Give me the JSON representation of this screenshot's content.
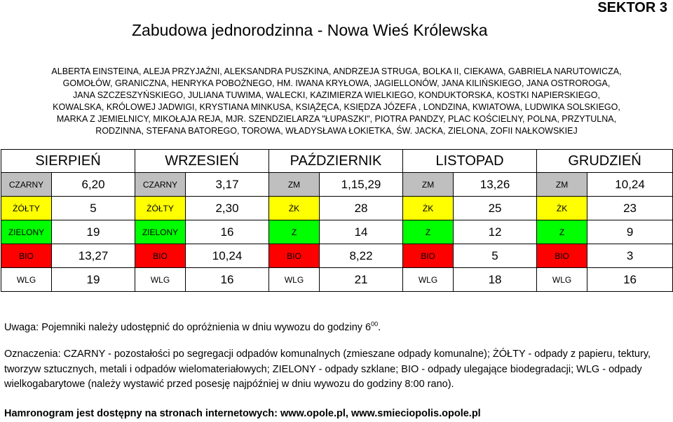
{
  "sector": "SEKTOR 3",
  "title": "Zabudowa jednorodzinna - Nowa Wieś Królewska",
  "streets": [
    "ALBERTA EINSTEINA, ALEJA PRZYJAŹNI, ALEKSANDRA PUSZKINA, ANDRZEJA STRUGA, BOLKA II, CIEKAWA, GABRIELA NARUTOWICZA,",
    "GOMOŁÓW, GRANICZNA, HENRYKA POBOŻNEGO, HM. IWANA KRYŁOWA, JAGIELLONÓW, JANA KILIŃSKIEGO, JANA OSTROROGA,",
    "JANA SZCZESZYŃSKIEGO, JULIANA TUWIMA, WALECKI, KAZIMIERZA WIELKIEGO, KONDUKTORSKA, KOSTKI NAPIERSKIEGO,",
    "KOWALSKA, KRÓLOWEJ JADWIGI, KRYSTIANA MINKUSA, KSIĄŻĘCA, KSIĘDZA JÓZEFA , LONDZINA, KWIATOWA, LUDWIKA SOLSKIEGO,",
    "MARKA Z JEMIELNICY, MIKOŁAJA REJA, MJR. SZENDZIELARZA \"ŁUPASZKI\", PIOTRA PANDZY, PLAC KOŚCIELNY, POLNA, PRZYTULNA,",
    "RODZINNA, STEFANA BATOREGO, TOROWA, WŁADYSŁAWA ŁOKIETKA, ŚW. JACKA, ZIELONA, ZOFII NAŁKOWSKIEJ"
  ],
  "months": [
    "SIERPIEŃ",
    "WRZESIEŃ",
    "PAŹDZIERNIK",
    "LISTOPAD",
    "GRUDZIEŃ"
  ],
  "rows": [
    {
      "color": "#bfbfbf",
      "labels": [
        "CZARNY",
        "CZARNY",
        "ZM",
        "ZM",
        "ZM"
      ],
      "values": [
        "6,20",
        "3,17",
        "1,15,29",
        "13,26",
        "10,24"
      ]
    },
    {
      "color": "#ffff00",
      "labels": [
        "ŻÓŁTY",
        "ŻÓŁTY",
        "ŻK",
        "ŻK",
        "ŻK"
      ],
      "values": [
        "5",
        "2,30",
        "28",
        "25",
        "23"
      ]
    },
    {
      "color": "#00ff00",
      "labels": [
        "ZIELONY",
        "ZIELONY",
        "Z",
        "Z",
        "Z"
      ],
      "values": [
        "19",
        "16",
        "14",
        "12",
        "9"
      ]
    },
    {
      "color": "#ff0000",
      "labels": [
        "BIO",
        "BIO",
        "BIO",
        "BIO",
        "BIO"
      ],
      "values": [
        "13,27",
        "10,24",
        "8,22",
        "5",
        "3"
      ]
    },
    {
      "color": "#ffffff",
      "labels": [
        "WLG",
        "WLG",
        "WLG",
        "WLG",
        "WLG"
      ],
      "values": [
        "19",
        "16",
        "21",
        "18",
        "16"
      ]
    }
  ],
  "note": {
    "text": "Uwaga: Pojemniki należy udostępnić do opróżnienia w dniu wywozu do godziny 6",
    "sup": "00",
    "end": "."
  },
  "legend": "Oznaczenia: CZARNY - pozostałości po segregacji odpadów komunalnych (zmieszane odpady komunalne); ŻÓŁTY - odpady z papieru, tektury, tworzyw sztucznych, metali i odpadów wielomateriałowych; ZIELONY - odpady szklane; BIO - odpady ulegające biodegradacji; WLG - odpady wielkogabarytowe (należy wystawić przed posesję najpóźniej w dniu wywozu do godziny 8:00 rano).",
  "footer": "Hamronogram jest dostępny na stronach internetowych: www.opole.pl, www.smieciopolis.opole.pl"
}
